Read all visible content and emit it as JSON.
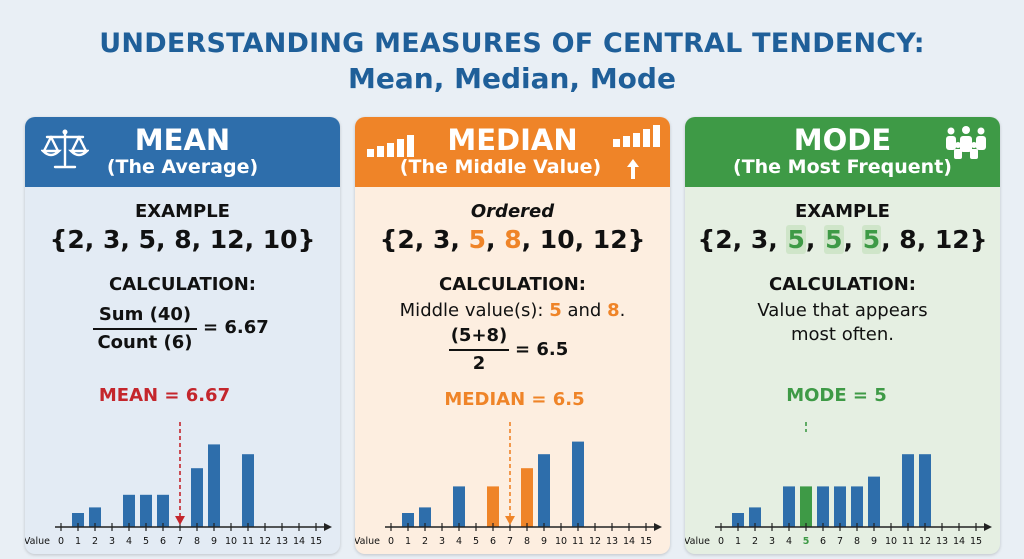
{
  "title": {
    "line1": "UNDERSTANDING MEASURES OF CENTRAL TENDENCY:",
    "line2": "Mean, Median, Mode"
  },
  "colors": {
    "mean": "#2e6eab",
    "median": "#ef8428",
    "mode": "#3e9a46",
    "title": "#1f5f99"
  },
  "mean": {
    "heading": "MEAN",
    "subheading": "(The Average)",
    "icon": "balance-scale-icon",
    "example_label": "EXAMPLE",
    "set": "{2, 3, 5, 8, 12, 10}",
    "calc_label": "CALCULATION:",
    "numerator": "Sum (40)",
    "denominator": "Count (6)",
    "result": "= 6.67",
    "marker_label": "MEAN = 6.67"
  },
  "median": {
    "heading": "MEDIAN",
    "subheading": "(The Middle Value)",
    "icon": "ascending-bars-icon",
    "arrow_icon": "up-arrow-icon",
    "example_label": "Ordered",
    "set_parts": [
      "{2, 3, ",
      "5",
      ", ",
      "8",
      ", 10, 12}"
    ],
    "calc_label": "CALCULATION:",
    "middle_parts": [
      "Middle value(s): ",
      "5",
      " and ",
      "8",
      "."
    ],
    "numerator": "(5+8)",
    "denominator": "2",
    "result": "= 6.5",
    "marker_label": "MEDIAN = 6.5"
  },
  "mode": {
    "heading": "MODE",
    "subheading": "(The Most Frequent)",
    "icon": "people-group-icon",
    "example_label": "EXAMPLE",
    "set_parts": [
      "{2, 3, ",
      "5",
      ", ",
      "5",
      ", ",
      "5",
      ", 8, 12}"
    ],
    "calc_label": "CALCULATION:",
    "desc_line1": "Value that appears",
    "desc_line2": "most often.",
    "marker_label": "MODE = 5"
  },
  "chart_data": [
    {
      "type": "bar",
      "name": "mean",
      "x_label": "Value",
      "x_ticks": [
        "0",
        "1",
        "2",
        "3",
        "4",
        "5",
        "6",
        "7",
        "8",
        "9",
        "10",
        "11",
        "12",
        "13",
        "14",
        "15"
      ],
      "bars": [
        {
          "x": 1,
          "h": 1
        },
        {
          "x": 2,
          "h": 1.4
        },
        {
          "x": 4,
          "h": 2.3
        },
        {
          "x": 5,
          "h": 2.3
        },
        {
          "x": 6,
          "h": 2.3
        },
        {
          "x": 8,
          "h": 4.2
        },
        {
          "x": 9,
          "h": 5.9
        },
        {
          "x": 11,
          "h": 5.2
        }
      ],
      "marker": {
        "x": 7,
        "label": "MEAN = 6.67"
      },
      "highlight_bars": [],
      "highlight_ticks": []
    },
    {
      "type": "bar",
      "name": "median",
      "x_label": "Value",
      "x_ticks": [
        "0",
        "1",
        "2",
        "3",
        "4",
        "5",
        "6",
        "7",
        "8",
        "9",
        "10",
        "11",
        "12",
        "13",
        "14",
        "15"
      ],
      "bars": [
        {
          "x": 1,
          "h": 1
        },
        {
          "x": 2,
          "h": 1.4
        },
        {
          "x": 4,
          "h": 2.9
        },
        {
          "x": 6,
          "h": 2.9
        },
        {
          "x": 8,
          "h": 4.2
        },
        {
          "x": 9,
          "h": 5.2
        },
        {
          "x": 11,
          "h": 6.1
        }
      ],
      "marker": {
        "x": 7,
        "label": "MEDIAN = 6.5"
      },
      "highlight_bars": [
        6,
        8
      ],
      "highlight_ticks": []
    },
    {
      "type": "bar",
      "name": "mode",
      "x_label": "Value",
      "x_ticks": [
        "0",
        "1",
        "2",
        "3",
        "4",
        "5",
        "6",
        "7",
        "8",
        "9",
        "10",
        "11",
        "12",
        "13",
        "14",
        "15"
      ],
      "bars": [
        {
          "x": 1,
          "h": 1
        },
        {
          "x": 2,
          "h": 1.4
        },
        {
          "x": 4,
          "h": 2.9
        },
        {
          "x": 5,
          "h": 2.9
        },
        {
          "x": 6,
          "h": 2.9
        },
        {
          "x": 7,
          "h": 2.9
        },
        {
          "x": 8,
          "h": 2.9
        },
        {
          "x": 9,
          "h": 3.6
        },
        {
          "x": 11,
          "h": 5.2
        },
        {
          "x": 12,
          "h": 5.2
        }
      ],
      "marker": {
        "x": 5,
        "label": "MODE = 5"
      },
      "highlight_bars": [
        5
      ],
      "highlight_ticks": [
        5
      ]
    }
  ]
}
